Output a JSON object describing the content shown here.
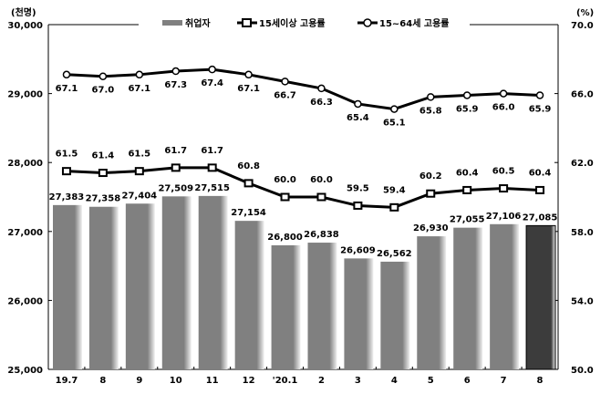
{
  "chart_data": {
    "type": "bar",
    "categories": [
      "19.7",
      "8",
      "9",
      "10",
      "11",
      "12",
      "'20.1",
      "2",
      "3",
      "4",
      "5",
      "6",
      "7",
      "8"
    ],
    "left_unit": "(천명)",
    "right_unit": "(%)",
    "left_ylim": [
      25000,
      30000
    ],
    "right_ylim": [
      50,
      70
    ],
    "left_ticks": [
      "25,000",
      "26,000",
      "27,000",
      "28,000",
      "29,000",
      "30,000"
    ],
    "right_ticks": [
      "50.0",
      "54.0",
      "58.0",
      "62.0",
      "66.0",
      "70.0"
    ],
    "legend": {
      "placement": "top-center",
      "entries": [
        "취업자",
        "15세이상 고용률",
        "15~64세 고용률"
      ]
    },
    "series": [
      {
        "name": "취업자",
        "type": "bar",
        "axis": "left",
        "color": "#808080",
        "highlight_color": "#404040",
        "values": [
          27383,
          27358,
          27404,
          27509,
          27515,
          27154,
          26800,
          26838,
          26609,
          26562,
          26930,
          27055,
          27106,
          27085
        ],
        "labels": [
          "27,383",
          "27,358",
          "27,404",
          "27,509",
          "27,515",
          "27,154",
          "26,800",
          "26,838",
          "26,609",
          "26,562",
          "26,930",
          "27,055",
          "27,106",
          "27,085"
        ]
      },
      {
        "name": "15세이상 고용률",
        "type": "line",
        "axis": "right",
        "marker": "square",
        "values": [
          61.5,
          61.4,
          61.5,
          61.7,
          61.7,
          60.8,
          60.0,
          60.0,
          59.5,
          59.4,
          60.2,
          60.4,
          60.5,
          60.4
        ]
      },
      {
        "name": "15~64세 고용률",
        "type": "line",
        "axis": "right",
        "marker": "circle",
        "values": [
          67.1,
          67.0,
          67.1,
          67.3,
          67.4,
          67.1,
          66.7,
          66.3,
          65.4,
          65.1,
          65.8,
          65.9,
          66.0,
          65.9
        ]
      }
    ]
  }
}
